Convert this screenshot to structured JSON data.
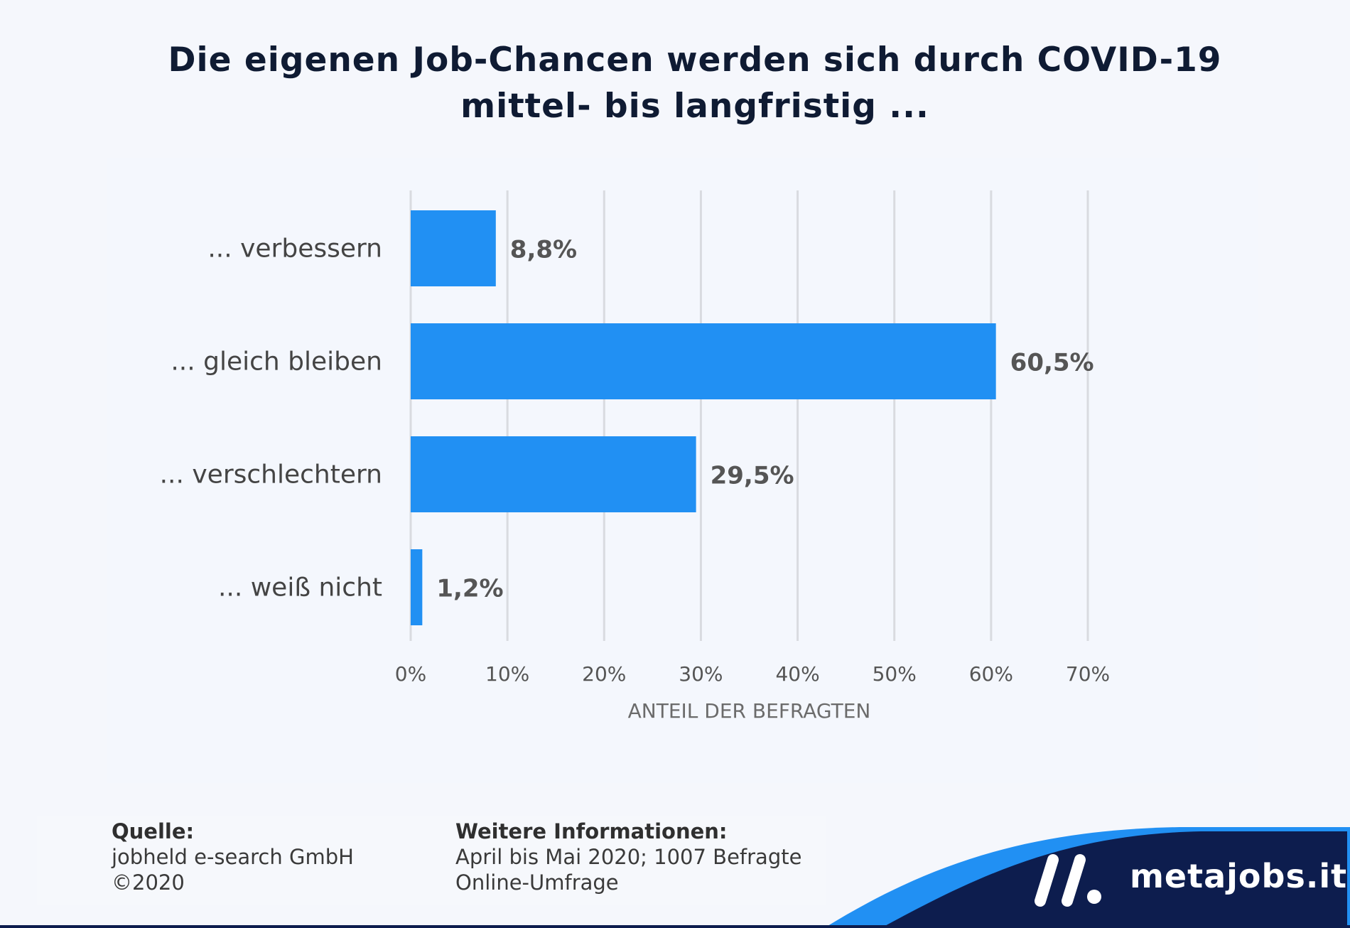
{
  "chart_data": {
    "type": "bar",
    "orientation": "horizontal",
    "title": [
      "Die eigenen Job-Chancen werden sich durch COVID-19",
      "mittel- bis langfristig ..."
    ],
    "categories": [
      "... verbessern",
      "... gleich bleiben",
      "... verschlechtern",
      "... weiß nicht"
    ],
    "values": [
      8.8,
      60.5,
      29.5,
      1.2
    ],
    "value_labels": [
      "8,8%",
      "60,5%",
      "29,5%",
      "1,2%"
    ],
    "xlabel": "ANTEIL DER BEFRAGTEN",
    "ylabel": "",
    "xlim": [
      0,
      70
    ],
    "xticks": [
      0,
      10,
      20,
      30,
      40,
      50,
      60,
      70
    ],
    "xtick_labels": [
      "0%",
      "10%",
      "20%",
      "30%",
      "40%",
      "50%",
      "60%",
      "70%"
    ],
    "grid": "vertical",
    "bar_color": "#2190f3",
    "label_color": "#555555"
  },
  "footer": {
    "source_heading": "Quelle:",
    "source_lines": [
      "jobheld e-search GmbH",
      "©2020"
    ],
    "info_heading": "Weitere Informationen:",
    "info_lines": [
      "April bis Mai 2020; 1007 Befragte",
      "Online-Umfrage"
    ]
  },
  "brand": {
    "name": "metajobs.it",
    "logo_icon": "metajobs-logo-icon",
    "navy": "#0d1d4e",
    "accent": "#2190f3"
  }
}
